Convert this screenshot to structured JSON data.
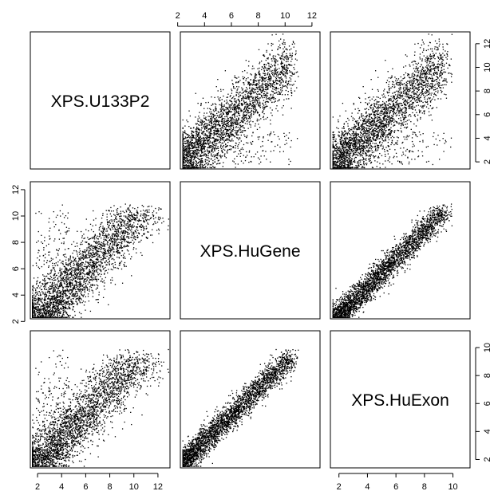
{
  "chart_data": {
    "type": "scatter",
    "variables": [
      "XPS.U133P2",
      "XPS.HuGene",
      "XPS.HuExon"
    ],
    "layout": "pairs-matrix",
    "ranges": {
      "XPS.U133P2": [
        1.4,
        13.0
      ],
      "XPS.HuGene": [
        2.2,
        12.6
      ],
      "XPS.HuExon": [
        1.4,
        11.2
      ]
    },
    "ticks": {
      "XPS.U133P2": [
        2,
        4,
        6,
        8,
        10,
        12
      ],
      "XPS.HuGene": [
        2,
        4,
        6,
        8,
        10,
        12
      ],
      "XPS.HuExon": [
        2,
        4,
        6,
        8,
        10
      ]
    },
    "tick_labels": {
      "XPS.U133P2": [
        "2",
        "4",
        "6",
        "8",
        "10",
        "12"
      ],
      "XPS.HuGene": [
        "2",
        "4",
        "6",
        "8",
        "10",
        "12"
      ],
      "XPS.HuExon": [
        "2",
        "4",
        "6",
        "8",
        "10"
      ]
    },
    "panels": [
      {
        "row": 0,
        "col": 1,
        "x_var": "XPS.HuGene",
        "y_var": "XPS.U133P2"
      },
      {
        "row": 0,
        "col": 2,
        "x_var": "XPS.HuExon",
        "y_var": "XPS.U133P2"
      },
      {
        "row": 1,
        "col": 0,
        "x_var": "XPS.U133P2",
        "y_var": "XPS.HuGene"
      },
      {
        "row": 1,
        "col": 2,
        "x_var": "XPS.HuExon",
        "y_var": "XPS.HuGene"
      },
      {
        "row": 2,
        "col": 0,
        "x_var": "XPS.U133P2",
        "y_var": "XPS.HuExon"
      },
      {
        "row": 2,
        "col": 1,
        "x_var": "XPS.HuGene",
        "y_var": "XPS.HuExon"
      }
    ],
    "point_count_per_panel": 3000,
    "point_color": "#000000",
    "grid": false
  }
}
